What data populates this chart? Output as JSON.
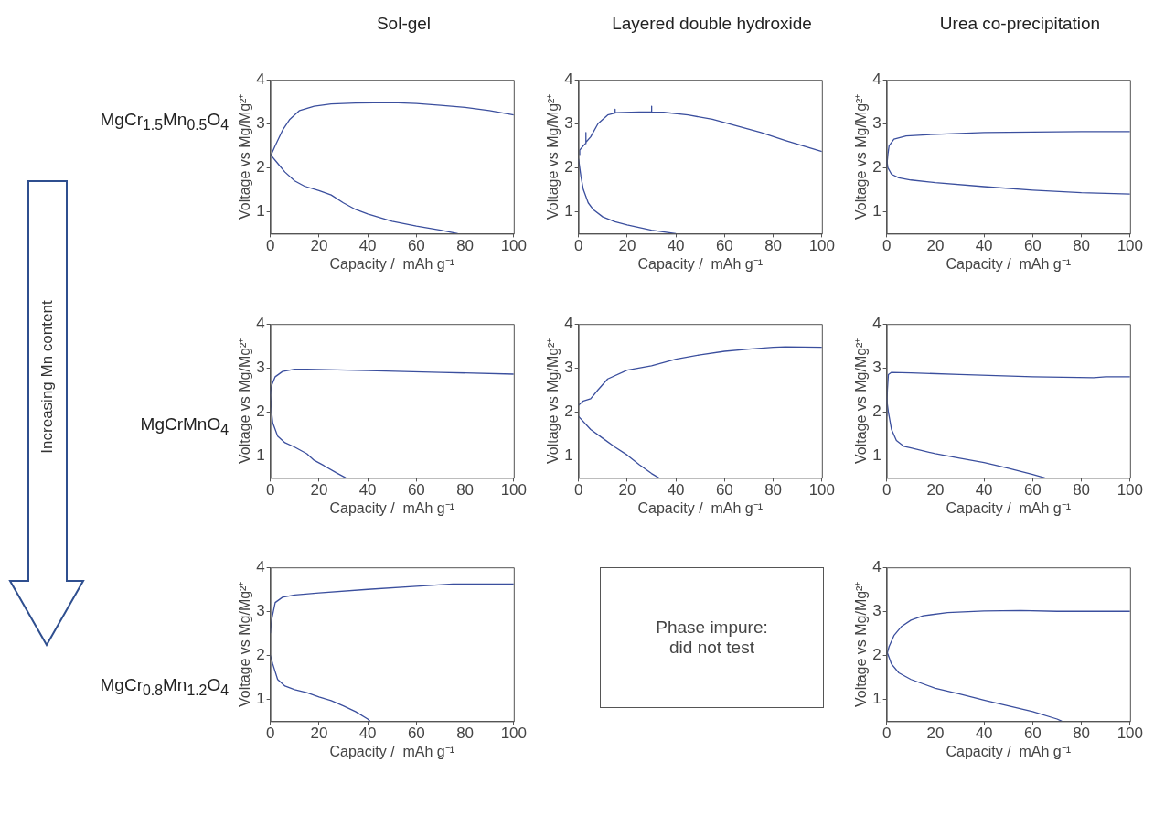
{
  "chart_data": [
    {
      "type": "line",
      "title": "Sol-gel",
      "xlabel": "Capacity /  mAh g⁻¹",
      "ylabel": "Voltage vs Mg/Mg²⁺",
      "annotations": [
        "MgCr$_{1.5}$Mn$_{0.5}$O$_{4}$"
      ],
      "xlim": [
        0,
        100
      ],
      "xticks": [
        0,
        20,
        40,
        60,
        80,
        100
      ],
      "ylim": [
        0.5,
        4
      ],
      "yticks": [
        1,
        2,
        3,
        4
      ],
      "marker": "none",
      "series": [
        {
          "color": "#3b4f9e",
          "x": [
            0,
            2,
            5,
            8,
            12,
            18,
            25,
            35,
            50,
            60,
            70,
            80,
            90,
            100
          ],
          "values": [
            2.25,
            2.5,
            2.85,
            3.1,
            3.3,
            3.4,
            3.45,
            3.47,
            3.48,
            3.46,
            3.42,
            3.37,
            3.3,
            3.2
          ]
        },
        {
          "color": "#3b4f9e",
          "x": [
            0,
            3,
            6,
            10,
            14,
            20,
            25,
            30,
            35,
            40,
            50,
            60,
            70,
            77
          ],
          "values": [
            2.3,
            2.1,
            1.9,
            1.7,
            1.58,
            1.48,
            1.38,
            1.2,
            1.05,
            0.95,
            0.78,
            0.67,
            0.58,
            0.5
          ]
        }
      ]
    },
    {
      "type": "line",
      "title": "Layered double hydroxide",
      "xlabel": "Capacity /  mAh g⁻¹",
      "ylabel": "Voltage vs Mg/Mg²⁺",
      "xlim": [
        0,
        100
      ],
      "xticks": [
        0,
        20,
        40,
        60,
        80,
        100
      ],
      "ylim": [
        0.5,
        4
      ],
      "yticks": [
        1,
        2,
        3,
        4
      ],
      "marker": "none",
      "series": [
        {
          "color": "#3b4f9e",
          "x": [
            0.3,
            0.5,
            2,
            2.9,
            3,
            3.1,
            5,
            8,
            12,
            14.9,
            15,
            15.1,
            25,
            29.9,
            30,
            30.1,
            35,
            45,
            55,
            65,
            75,
            85,
            100
          ],
          "values": [
            2.3,
            2.4,
            2.5,
            2.55,
            2.8,
            2.58,
            2.7,
            3.0,
            3.2,
            3.24,
            3.33,
            3.25,
            3.27,
            3.27,
            3.4,
            3.27,
            3.26,
            3.2,
            3.1,
            2.95,
            2.8,
            2.62,
            2.37
          ]
        },
        {
          "color": "#3b4f9e",
          "x": [
            0,
            1,
            2,
            4,
            6,
            10,
            15,
            20,
            30,
            40
          ],
          "values": [
            2.2,
            1.8,
            1.5,
            1.2,
            1.05,
            0.88,
            0.77,
            0.7,
            0.58,
            0.5
          ]
        }
      ]
    },
    {
      "type": "line",
      "title": "Urea co-precipitation",
      "xlabel": "Capacity /  mAh g⁻¹",
      "ylabel": "Voltage vs Mg/Mg²⁺",
      "xlim": [
        0,
        100
      ],
      "xticks": [
        0,
        20,
        40,
        60,
        80,
        100
      ],
      "ylim": [
        0.5,
        4
      ],
      "yticks": [
        1,
        2,
        3,
        4
      ],
      "marker": "none",
      "series": [
        {
          "color": "#3b4f9e",
          "x": [
            0,
            0.5,
            1,
            3,
            8,
            20,
            40,
            60,
            80,
            100
          ],
          "values": [
            2.0,
            2.3,
            2.5,
            2.65,
            2.72,
            2.76,
            2.8,
            2.81,
            2.82,
            2.82
          ]
        },
        {
          "color": "#3b4f9e",
          "x": [
            0,
            0.5,
            2,
            5,
            10,
            20,
            40,
            60,
            80,
            100
          ],
          "values": [
            2.2,
            2.0,
            1.85,
            1.77,
            1.72,
            1.66,
            1.57,
            1.49,
            1.43,
            1.4
          ]
        }
      ]
    },
    {
      "type": "line",
      "xlabel": "Capacity /  mAh g⁻¹",
      "ylabel": "Voltage vs Mg/Mg²⁺",
      "annotations": [
        "MgCrMnO$_{4}$",
        "Increasing Mn content"
      ],
      "xlim": [
        0,
        100
      ],
      "xticks": [
        0,
        20,
        40,
        60,
        80,
        100
      ],
      "ylim": [
        0.5,
        4
      ],
      "yticks": [
        1,
        2,
        3,
        4
      ],
      "marker": "none",
      "series": [
        {
          "color": "#3b4f9e",
          "x": [
            0,
            0.5,
            2,
            5,
            10,
            15,
            40,
            70,
            100
          ],
          "values": [
            2.4,
            2.6,
            2.8,
            2.92,
            2.97,
            2.97,
            2.94,
            2.9,
            2.86
          ]
        },
        {
          "color": "#3b4f9e",
          "x": [
            0,
            0.5,
            1,
            3,
            6,
            10,
            15,
            18,
            22,
            27,
            31
          ],
          "values": [
            2.5,
            2.0,
            1.75,
            1.45,
            1.3,
            1.2,
            1.05,
            0.9,
            0.78,
            0.62,
            0.5
          ]
        }
      ]
    },
    {
      "type": "line",
      "xlabel": "Capacity /  mAh g⁻¹",
      "ylabel": "Voltage vs Mg/Mg²⁺",
      "xlim": [
        0,
        100
      ],
      "xticks": [
        0,
        20,
        40,
        60,
        80,
        100
      ],
      "ylim": [
        0.5,
        4
      ],
      "yticks": [
        1,
        2,
        3,
        4
      ],
      "marker": "none",
      "series": [
        {
          "color": "#3b4f9e",
          "x": [
            0,
            2,
            5,
            8,
            12,
            20,
            30,
            40,
            50,
            60,
            70,
            80,
            85,
            100
          ],
          "values": [
            2.15,
            2.25,
            2.3,
            2.5,
            2.75,
            2.95,
            3.05,
            3.2,
            3.3,
            3.38,
            3.43,
            3.47,
            3.48,
            3.47
          ]
        },
        {
          "color": "#3b4f9e",
          "x": [
            0,
            5,
            10,
            15,
            20,
            25,
            30,
            33
          ],
          "values": [
            1.9,
            1.6,
            1.4,
            1.2,
            1.02,
            0.8,
            0.6,
            0.5
          ]
        }
      ]
    },
    {
      "type": "line",
      "xlabel": "Capacity /  mAh g⁻¹",
      "ylabel": "Voltage vs Mg/Mg²⁺",
      "xlim": [
        0,
        100
      ],
      "xticks": [
        0,
        20,
        40,
        60,
        80,
        100
      ],
      "ylim": [
        0.5,
        4
      ],
      "yticks": [
        1,
        2,
        3,
        4
      ],
      "marker": "none",
      "series": [
        {
          "color": "#3b4f9e",
          "x": [
            0,
            0.3,
            0.7,
            2,
            10,
            30,
            60,
            85,
            90,
            100
          ],
          "values": [
            1.9,
            2.5,
            2.85,
            2.9,
            2.89,
            2.85,
            2.8,
            2.78,
            2.8,
            2.8
          ]
        },
        {
          "color": "#3b4f9e",
          "x": [
            0,
            0.7,
            2,
            4,
            7,
            10,
            20,
            30,
            40,
            50,
            60,
            65
          ],
          "values": [
            2.3,
            2.0,
            1.6,
            1.35,
            1.22,
            1.18,
            1.05,
            0.95,
            0.85,
            0.72,
            0.58,
            0.5
          ]
        }
      ]
    },
    {
      "type": "line",
      "xlabel": "Capacity /  mAh g⁻¹",
      "ylabel": "Voltage vs Mg/Mg²⁺",
      "annotations": [
        "MgCr$_{0.8}$Mn$_{1.2}$O$_{4}$"
      ],
      "xlim": [
        0,
        100
      ],
      "xticks": [
        0,
        20,
        40,
        60,
        80,
        100
      ],
      "ylim": [
        0.5,
        4
      ],
      "yticks": [
        1,
        2,
        3,
        4
      ],
      "marker": "none",
      "series": [
        {
          "color": "#3b4f9e",
          "x": [
            0,
            0.5,
            2,
            5,
            10,
            20,
            40,
            60,
            75,
            100
          ],
          "values": [
            2.5,
            2.8,
            3.2,
            3.32,
            3.37,
            3.42,
            3.5,
            3.57,
            3.62,
            3.62
          ]
        },
        {
          "color": "#3b4f9e",
          "x": [
            0,
            1,
            3,
            6,
            10,
            15,
            20,
            25,
            30,
            35,
            40,
            41
          ],
          "values": [
            2.0,
            1.8,
            1.45,
            1.3,
            1.22,
            1.15,
            1.05,
            0.97,
            0.85,
            0.72,
            0.55,
            0.5
          ]
        }
      ]
    },
    {
      "type": "other",
      "annotations": [
        "Phase impure: did not test"
      ]
    },
    {
      "type": "line",
      "xlabel": "Capacity /  mAh g⁻¹",
      "ylabel": "Voltage vs Mg/Mg²⁺",
      "xlim": [
        0,
        100
      ],
      "xticks": [
        0,
        20,
        40,
        60,
        80,
        100
      ],
      "ylim": [
        0.5,
        4
      ],
      "yticks": [
        1,
        2,
        3,
        4
      ],
      "marker": "none",
      "series": [
        {
          "color": "#3b4f9e",
          "x": [
            0,
            1,
            3,
            6,
            10,
            15,
            25,
            40,
            55,
            70,
            100
          ],
          "values": [
            2.0,
            2.2,
            2.45,
            2.65,
            2.8,
            2.9,
            2.97,
            3.01,
            3.02,
            3.0,
            3.0
          ]
        },
        {
          "color": "#3b4f9e",
          "x": [
            0,
            2,
            5,
            10,
            20,
            30,
            40,
            50,
            60,
            70,
            72
          ],
          "values": [
            2.1,
            1.8,
            1.6,
            1.45,
            1.25,
            1.12,
            0.98,
            0.85,
            0.72,
            0.55,
            0.5
          ]
        }
      ]
    }
  ]
}
